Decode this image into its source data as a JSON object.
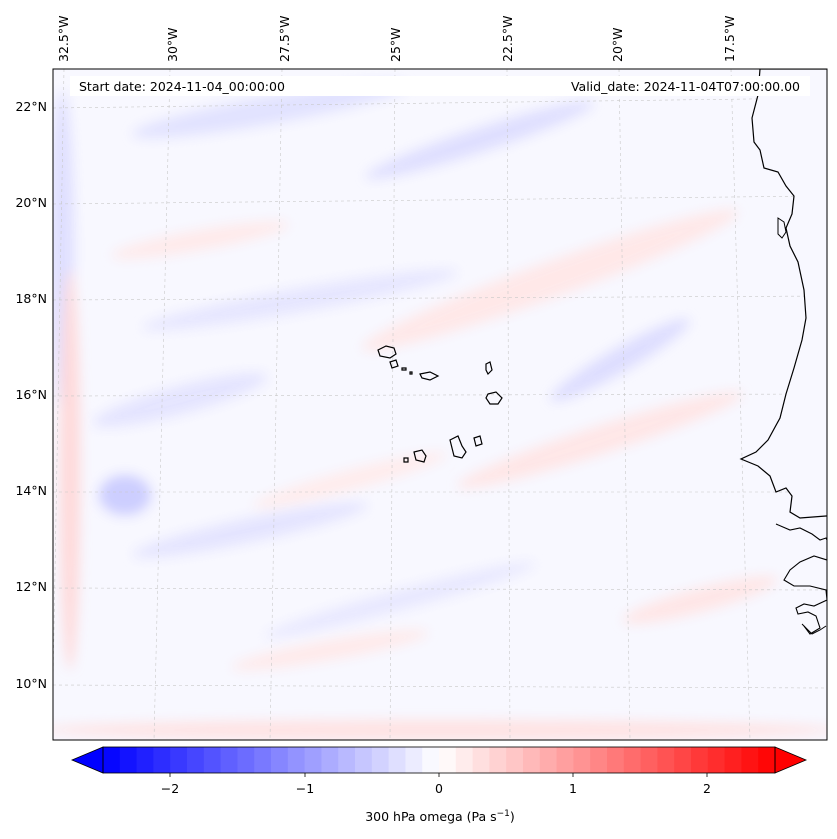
{
  "header": {
    "start_date": "Start date: 2024-11-04_00:00:00",
    "valid_date": "Valid_date: 2024-11-04T07:00:00.00"
  },
  "map": {
    "lon_labels": [
      "32.5°W",
      "30°W",
      "27.5°W",
      "25°W",
      "22.5°W",
      "20°W",
      "17.5°W"
    ],
    "lat_labels": [
      "22°N",
      "20°N",
      "18°N",
      "16°N",
      "14°N",
      "12°N",
      "10°N"
    ]
  },
  "colorbar": {
    "ticks": [
      "−2",
      "−1",
      "0",
      "1",
      "2"
    ],
    "label": "300 hPa omega (Pa s",
    "label_exp": "−1",
    "label_close": ")",
    "range": [
      -2.6,
      2.6
    ],
    "neg_color": "#0000ff",
    "mid_color": "#ffffff",
    "pos_color": "#ff0000"
  }
}
